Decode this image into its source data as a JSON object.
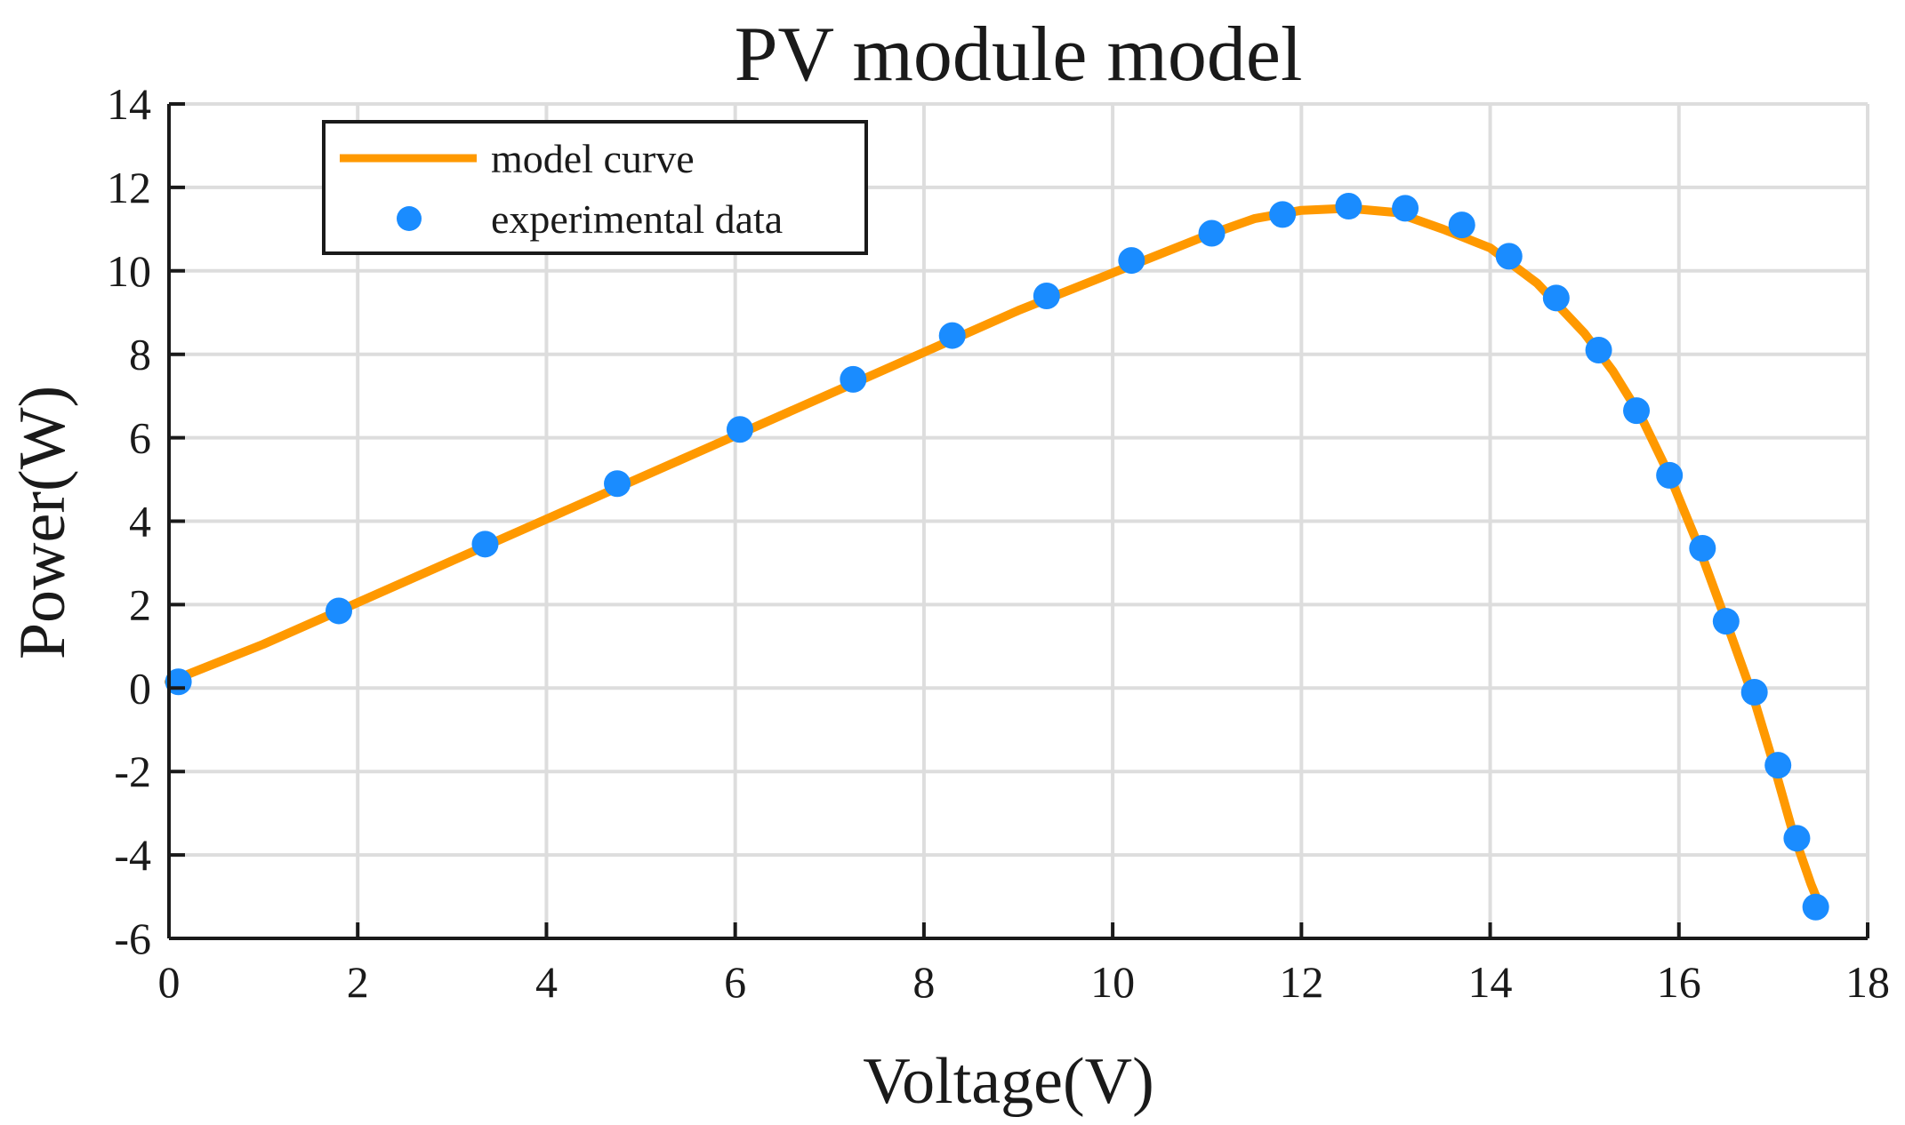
{
  "chart_data": {
    "type": "line",
    "title": "PV module model",
    "xlabel": "Voltage(V)",
    "ylabel": "Power(W)",
    "xlim": [
      0,
      18
    ],
    "ylim": [
      -6,
      14
    ],
    "xticks": [
      0,
      2,
      4,
      6,
      8,
      10,
      12,
      14,
      16,
      18
    ],
    "yticks": [
      -6,
      -4,
      -2,
      0,
      2,
      4,
      6,
      8,
      10,
      12,
      14
    ],
    "xtick_labels": [
      "0",
      "2",
      "4",
      "6",
      "8",
      "10",
      "12",
      "14",
      "16",
      "18"
    ],
    "ytick_labels": [
      "-6",
      "-4",
      "-2",
      "0",
      "2",
      "4",
      "6",
      "8",
      "10",
      "12",
      "14"
    ],
    "grid": true,
    "legend_position": "top-left",
    "series": [
      {
        "name": "model curve",
        "style": "line",
        "color": "#ff9900",
        "x": [
          0.0,
          1.0,
          2.0,
          3.0,
          4.0,
          5.0,
          6.0,
          7.0,
          8.0,
          9.0,
          10.0,
          10.5,
          11.0,
          11.5,
          12.0,
          12.5,
          13.0,
          13.5,
          14.0,
          14.5,
          15.0,
          15.3,
          15.6,
          15.9,
          16.2,
          16.5,
          16.8,
          17.0,
          17.2,
          17.4,
          17.5
        ],
        "y": [
          0.15,
          1.05,
          2.05,
          3.05,
          4.05,
          5.05,
          6.05,
          7.05,
          8.05,
          9.05,
          9.95,
          10.4,
          10.85,
          11.25,
          11.45,
          11.5,
          11.4,
          11.0,
          10.55,
          9.7,
          8.5,
          7.6,
          6.5,
          5.1,
          3.45,
          1.6,
          -0.3,
          -1.8,
          -3.4,
          -4.7,
          -5.25
        ]
      },
      {
        "name": "experimental data",
        "style": "scatter",
        "color": "#1a8cff",
        "x": [
          0.1,
          1.8,
          3.35,
          4.75,
          6.05,
          7.25,
          8.3,
          9.3,
          10.2,
          11.05,
          11.8,
          12.5,
          13.1,
          13.7,
          14.2,
          14.7,
          15.15,
          15.55,
          15.9,
          16.25,
          16.5,
          16.8,
          17.05,
          17.25,
          17.45
        ],
        "y": [
          0.15,
          1.85,
          3.45,
          4.9,
          6.2,
          7.4,
          8.45,
          9.4,
          10.25,
          10.9,
          11.35,
          11.55,
          11.5,
          11.1,
          10.35,
          9.35,
          8.1,
          6.65,
          5.1,
          3.35,
          1.6,
          -0.1,
          -1.85,
          -3.6,
          -5.25
        ]
      }
    ]
  }
}
